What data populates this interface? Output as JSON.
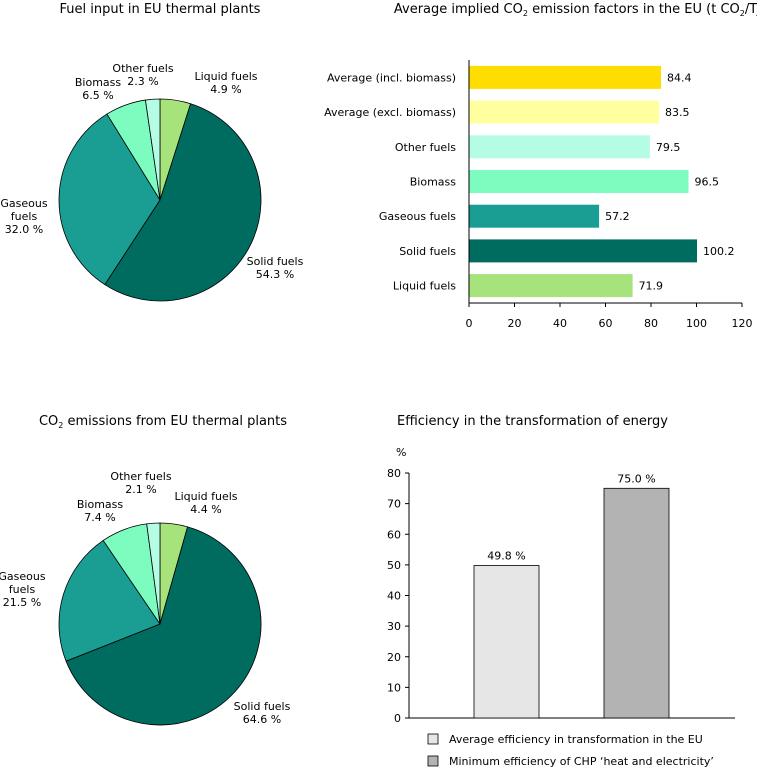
{
  "chart_data": [
    {
      "type": "pie",
      "title": "Fuel input in EU thermal plants",
      "slices": [
        {
          "name": "Liquid fuels",
          "value": 4.9,
          "label": "4.9 %",
          "color": "#a6e37a"
        },
        {
          "name": "Solid fuels",
          "value": 54.3,
          "label": "54.3 %",
          "color": "#006b5f"
        },
        {
          "name": "Gaseous fuels",
          "value": 32.0,
          "label": "32.0 %",
          "color": "#1a9e94"
        },
        {
          "name": "Biomass",
          "value": 6.5,
          "label": "6.5 %",
          "color": "#7dfcc0"
        },
        {
          "name": "Other fuels",
          "value": 2.3,
          "label": "2.3 %",
          "color": "#b4fde4"
        }
      ]
    },
    {
      "type": "bar",
      "orientation": "horizontal",
      "title_parts": [
        "Average implied CO",
        "2",
        " emission factors in the EU (t CO",
        "2",
        "/TJ)"
      ],
      "categories": [
        "Average (incl. biomass)",
        "Average (excl. biomass)",
        "Other fuels",
        "Biomass",
        "Gaseous fuels",
        "Solid fuels",
        "Liquid fuels"
      ],
      "values": [
        84.4,
        83.5,
        79.5,
        96.5,
        57.2,
        100.2,
        71.9
      ],
      "value_labels": [
        "84.4",
        "83.5",
        "79.5",
        "96.5",
        "57.2",
        "100.2",
        "71.9"
      ],
      "colors": [
        "#ffdd00",
        "#ffffa0",
        "#b4fde4",
        "#7dfcc0",
        "#1a9e94",
        "#006b5f",
        "#a6e37a"
      ],
      "xlim": [
        0,
        120
      ],
      "xticks": [
        "0",
        "20",
        "40",
        "60",
        "80",
        "100",
        "120"
      ]
    },
    {
      "type": "pie",
      "title_parts": [
        "CO",
        "2",
        " emissions from EU thermal plants"
      ],
      "slices": [
        {
          "name": "Liquid fuels",
          "value": 4.4,
          "label": "4.4 %",
          "color": "#a6e37a"
        },
        {
          "name": "Solid fuels",
          "value": 64.6,
          "label": "64.6 %",
          "color": "#006b5f"
        },
        {
          "name": "Gaseous fuels",
          "value": 21.5,
          "label": "21.5 %",
          "color": "#1a9e94"
        },
        {
          "name": "Biomass",
          "value": 7.4,
          "label": "7.4 %",
          "color": "#7dfcc0"
        },
        {
          "name": "Other fuels",
          "value": 2.1,
          "label": "2.1 %",
          "color": "#b4fde4"
        }
      ]
    },
    {
      "type": "bar",
      "orientation": "vertical",
      "title": "Efficiency in the transformation of energy",
      "ylabel": "%",
      "ylim": [
        0,
        80
      ],
      "yticks": [
        "0",
        "10",
        "20",
        "30",
        "40",
        "50",
        "60",
        "70",
        "80"
      ],
      "series": [
        {
          "name": "Average efficiency in transformation in the EU",
          "value": 49.8,
          "label": "49.8 %",
          "color": "#e6e6e6"
        },
        {
          "name": "Minimum efficiency of CHP ‘heat and electricity’",
          "value": 75.0,
          "label": "75.0 %",
          "color": "#b3b3b3"
        }
      ],
      "legend_position": "bottom"
    }
  ]
}
